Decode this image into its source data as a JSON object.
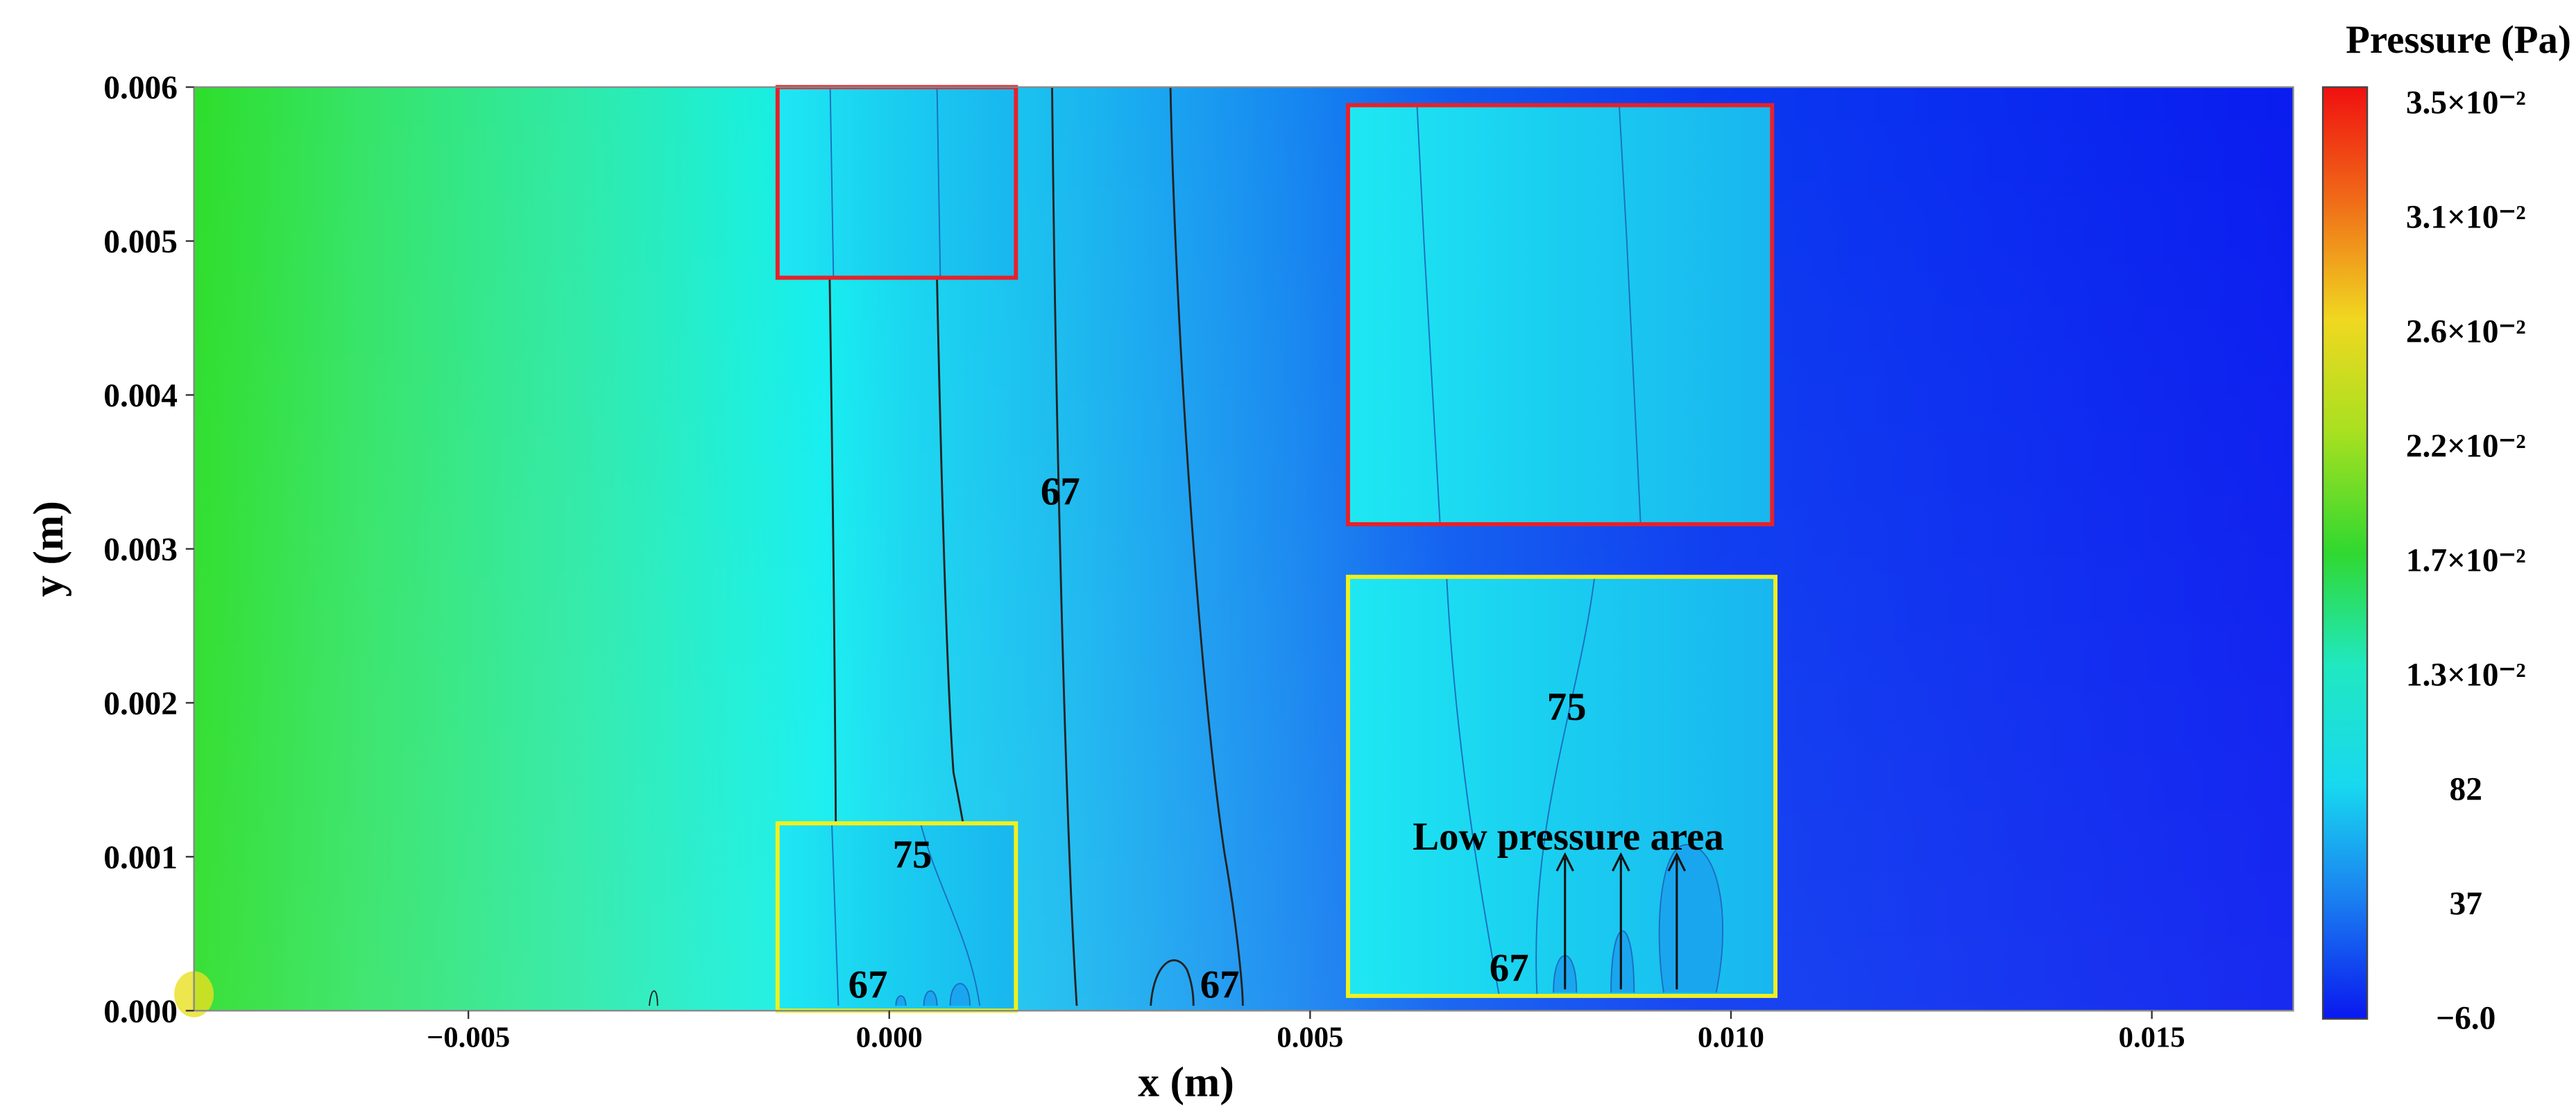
{
  "chart_data": {
    "type": "contour",
    "xlabel": "x (m)",
    "ylabel": "y (m)",
    "xlim": [
      -0.00826,
      0.01668
    ],
    "ylim": [
      0,
      0.006
    ],
    "xticks": [
      {
        "value": -0.005,
        "label": "−0.005"
      },
      {
        "value": 0,
        "label": "0.000"
      },
      {
        "value": 0.005,
        "label": "0.005"
      },
      {
        "value": 0.01,
        "label": "0.010"
      },
      {
        "value": 0.015,
        "label": "0.015"
      }
    ],
    "yticks": [
      {
        "value": 0,
        "label": "0.000"
      },
      {
        "value": 0.001,
        "label": "0.001"
      },
      {
        "value": 0.002,
        "label": "0.002"
      },
      {
        "value": 0.003,
        "label": "0.003"
      },
      {
        "value": 0.004,
        "label": "0.004"
      },
      {
        "value": 0.005,
        "label": "0.005"
      },
      {
        "value": 0.006,
        "label": "0.006"
      }
    ],
    "colorbar": {
      "label": "Pressure (Pa)",
      "ticks": [
        "3.5×10⁻²",
        "3.1×10⁻²",
        "2.6×10⁻²",
        "2.2×10⁻²",
        "1.7×10⁻²",
        "1.3×10⁻²",
        "82",
        "37",
        "−6.0"
      ]
    },
    "contour_labels": [
      "67",
      "75",
      "67",
      "67",
      "75",
      "67"
    ],
    "annotation": "Low pressure area"
  }
}
